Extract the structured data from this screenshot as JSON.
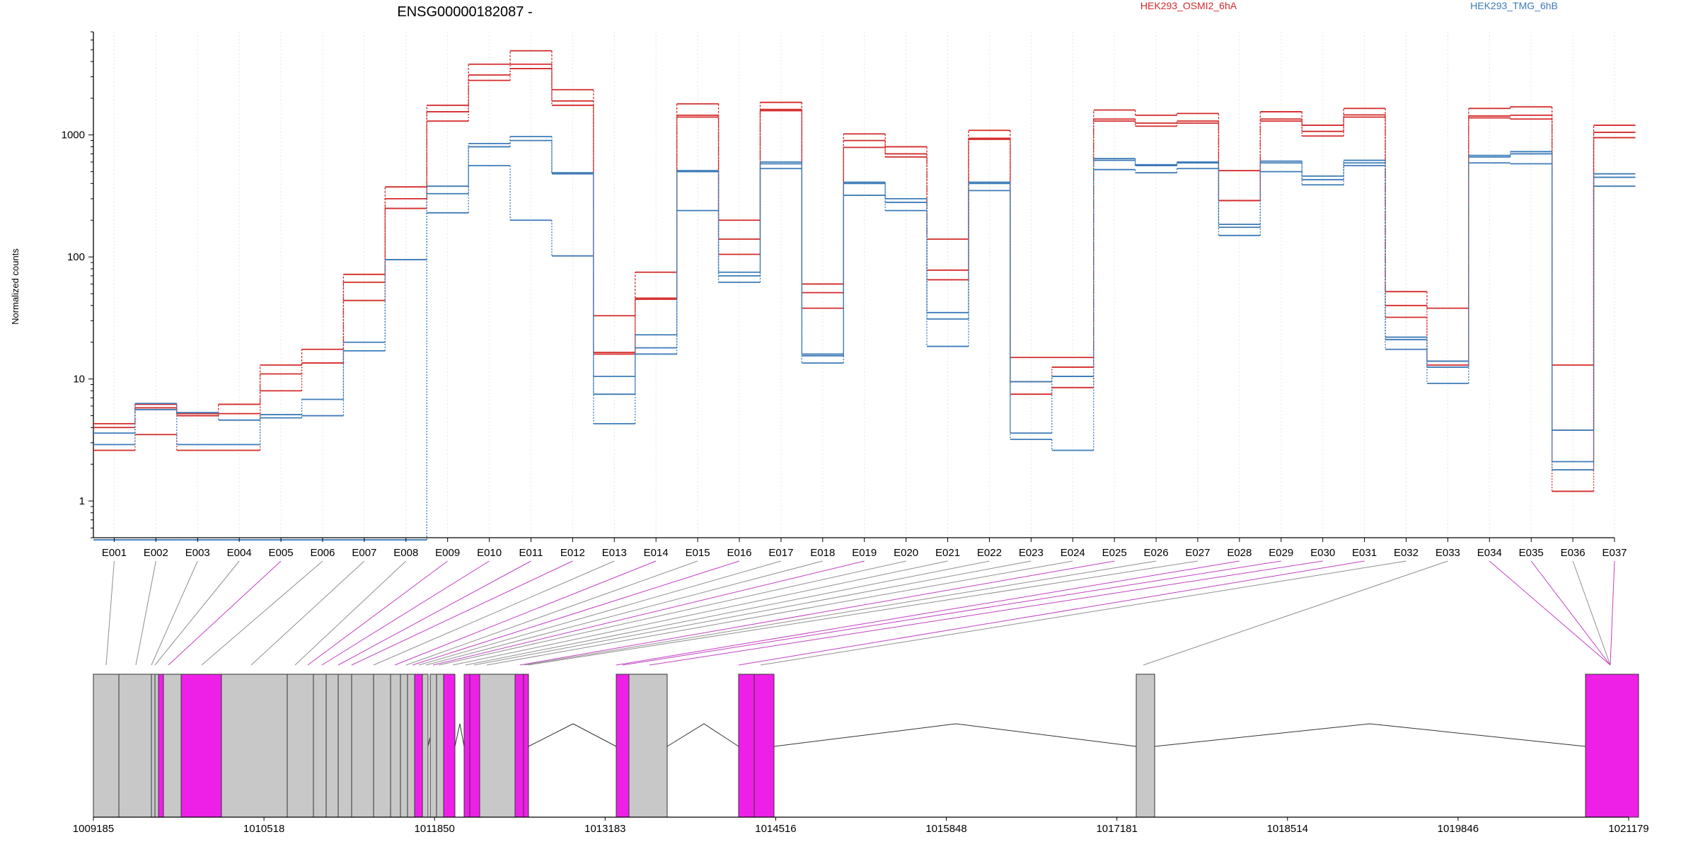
{
  "chart_data": {
    "type": "line",
    "title": "ENSG00000182087 -",
    "xlabel": "",
    "ylabel": "Normalized counts",
    "yscale": "log",
    "ylim": [
      0.5,
      7000
    ],
    "y_ticks": [
      1,
      10,
      100,
      1000
    ],
    "y_tick_labels": [
      "1",
      "10",
      "100",
      "1000"
    ],
    "grid": "vertical-dotted",
    "categories": [
      "E001",
      "E002",
      "E003",
      "E004",
      "E005",
      "E006",
      "E007",
      "E008",
      "E009",
      "E010",
      "E011",
      "E012",
      "E013",
      "E014",
      "E015",
      "E016",
      "E017",
      "E018",
      "E019",
      "E020",
      "E021",
      "E022",
      "E023",
      "E024",
      "E025",
      "E026",
      "E027",
      "E028",
      "E029",
      "E030",
      "E031",
      "E032",
      "E033",
      "E034",
      "E035",
      "E036",
      "E037"
    ],
    "groups": [
      {
        "name": "HEK293_OSMI2_6hA",
        "color": "#d42a2a"
      },
      {
        "name": "HEK293_TMG_6hB",
        "color": "#3d7bb8"
      }
    ],
    "series": [
      {
        "group": 0,
        "values": [
          4.3,
          6.2,
          5.2,
          6.2,
          13,
          17.5,
          72,
          375,
          1750,
          3800,
          4900,
          2350,
          33,
          75,
          1800,
          200,
          1850,
          60,
          1020,
          800,
          140,
          1090,
          15,
          15,
          1600,
          1450,
          1500,
          510,
          1550,
          1200,
          1650,
          52,
          38,
          1650,
          1700,
          13,
          1200
        ]
      },
      {
        "group": 0,
        "values": [
          4.0,
          5.8,
          5.0,
          5.2,
          11,
          13.5,
          62,
          300,
          1550,
          3100,
          3800,
          1900,
          16.5,
          46,
          1450,
          140,
          1620,
          51,
          900,
          700,
          78,
          940,
          9.5,
          12.5,
          1350,
          1250,
          1300,
          290,
          1350,
          1070,
          1460,
          40,
          14,
          1430,
          1450,
          3.8,
          1050
        ]
      },
      {
        "group": 0,
        "values": [
          2.6,
          3.5,
          2.6,
          2.6,
          8,
          13.5,
          44,
          250,
          1300,
          2800,
          3500,
          1750,
          16,
          45,
          1400,
          105,
          1580,
          38,
          790,
          660,
          65,
          920,
          7.5,
          8.5,
          1300,
          1180,
          1250,
          290,
          1300,
          980,
          1400,
          32,
          13,
          1380,
          1350,
          1.2,
          950
        ]
      },
      {
        "group": 1,
        "values": [
          2.9,
          5.6,
          2.9,
          2.9,
          4.8,
          5.0,
          17,
          95,
          230,
          560,
          200,
          102,
          4.3,
          16,
          240,
          62,
          530,
          13.5,
          320,
          240,
          18.5,
          350,
          3.2,
          2.6,
          520,
          490,
          530,
          150,
          500,
          390,
          560,
          17.5,
          9.2,
          590,
          580,
          1.8,
          380
        ]
      },
      {
        "group": 1,
        "values": [
          3.6,
          6.3,
          5.3,
          4.6,
          5.1,
          6.8,
          20,
          95,
          330,
          800,
          900,
          480,
          10.5,
          23,
          500,
          75,
          580,
          15.5,
          400,
          280,
          35,
          400,
          3.6,
          10.5,
          620,
          570,
          590,
          175,
          590,
          460,
          590,
          21,
          12.5,
          680,
          730,
          2.1,
          480
        ]
      },
      {
        "group": 1,
        "values": [
          0.48,
          0.48,
          0.48,
          0.48,
          0.48,
          0.48,
          0.48,
          0.48,
          380,
          850,
          970,
          490,
          7.5,
          18,
          510,
          70,
          600,
          16,
          410,
          300,
          31,
          410,
          9.5,
          10.5,
          640,
          560,
          600,
          185,
          610,
          430,
          620,
          22,
          14,
          660,
          700,
          3.8,
          450
        ]
      }
    ],
    "dashed_series": [
      0
    ],
    "gene_model": {
      "coordinate_ticks": [
        "1009185",
        "1010518",
        "1011850",
        "1013183",
        "1014516",
        "1015848",
        "1017181",
        "1018514",
        "1019846",
        "1021179"
      ],
      "highlight_color": "#ee20e8",
      "exon_color": "#c8c8c8",
      "highlighted_exons": [
        "E005",
        "E009",
        "E010",
        "E011",
        "E012",
        "E014",
        "E016",
        "E019",
        "E025",
        "E028",
        "E029",
        "E030",
        "E031",
        "E034",
        "E035",
        "E037"
      ]
    }
  }
}
